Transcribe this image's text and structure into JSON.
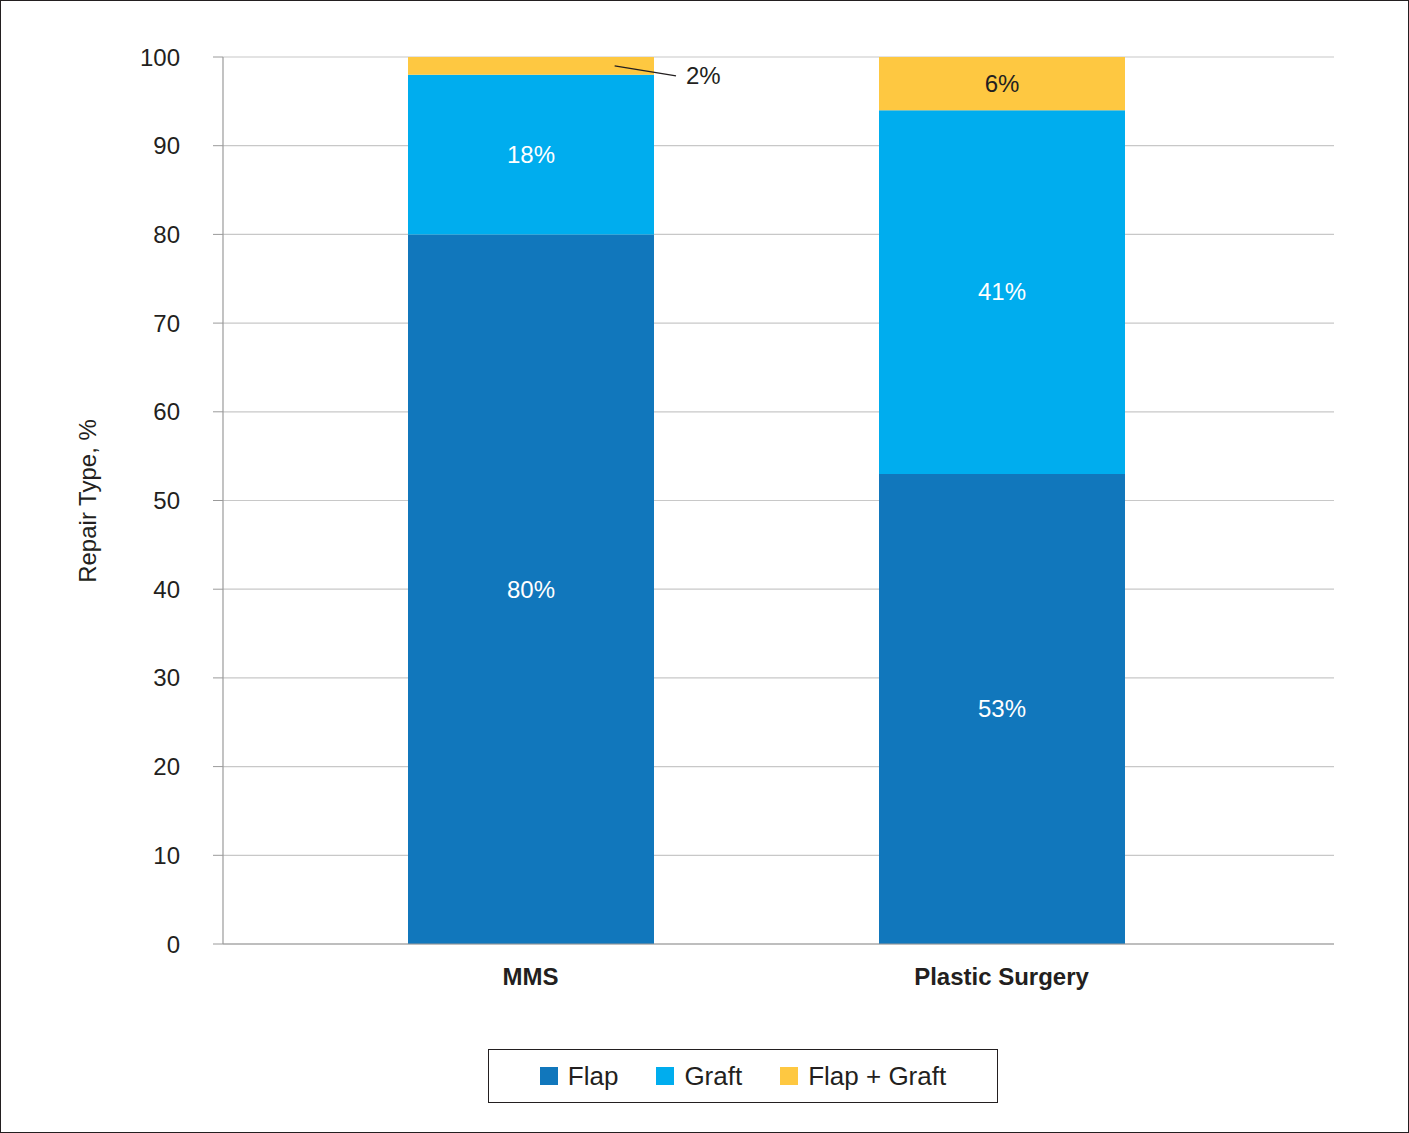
{
  "chart_data": {
    "type": "bar",
    "stacked": true,
    "data_labels": true,
    "grid": true,
    "legend": "bottom",
    "y_label": "Repair Type, %",
    "categories": [
      "MMS",
      "Plastic Surgery"
    ],
    "ylim": [
      0,
      100
    ],
    "yticks": [
      0,
      10,
      20,
      30,
      40,
      50,
      60,
      70,
      80,
      90,
      100
    ],
    "series": [
      {
        "name": "Flap",
        "color": "#1177bc",
        "values": [
          80,
          53
        ],
        "value_labels": [
          "80%",
          "53%"
        ]
      },
      {
        "name": "Graft",
        "color": "#00adee",
        "values": [
          18,
          41
        ],
        "value_labels": [
          "18%",
          "41%"
        ]
      },
      {
        "name": "Flap + Graft",
        "color": "#fec841",
        "values": [
          2,
          6
        ],
        "value_labels": [
          "2%",
          "6%"
        ]
      }
    ]
  }
}
